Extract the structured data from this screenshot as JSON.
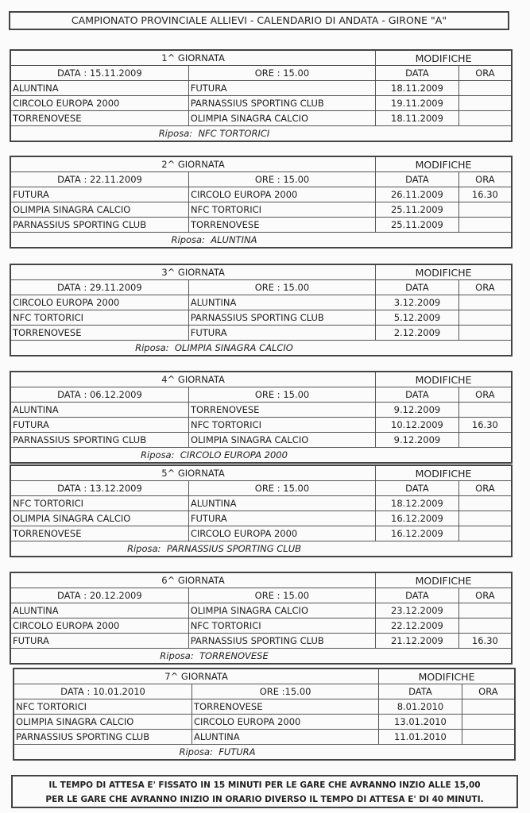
{
  "title": "CAMPIONATO PROVINCIALE ALLIEVI  - CALENDARIO DI ANDATA - GIRONE \"A\"",
  "labels": {
    "modifiche": "MODIFICHE",
    "data": "DATA",
    "ora": "ORA",
    "riposa": "Riposa:"
  },
  "giornate": [
    {
      "name": "1^ GIORNATA",
      "data": "DATA : 15.11.2009",
      "ore": "ORE : 15.00",
      "matches": [
        [
          "ALUNTINA",
          "FUTURA",
          "18.11.2009",
          ""
        ],
        [
          "CIRCOLO EUROPA 2000",
          "PARNASSIUS SPORTING CLUB",
          "19.11.2009",
          ""
        ],
        [
          "TORRENOVESE",
          "OLIMPIA SINAGRA CALCIO",
          "18.11.2009",
          ""
        ]
      ],
      "riposa": "NFC TORTORICI"
    },
    {
      "name": "2^ GIORNATA",
      "data": "DATA : 22.11.2009",
      "ore": "ORE : 15.00",
      "matches": [
        [
          "FUTURA",
          "CIRCOLO EUROPA 2000",
          "26.11.2009",
          "16.30"
        ],
        [
          "OLIMPIA SINAGRA CALCIO",
          "NFC TORTORICI",
          "25.11.2009",
          ""
        ],
        [
          "PARNASSIUS SPORTING CLUB",
          "TORRENOVESE",
          "25.11.2009",
          ""
        ]
      ],
      "riposa": "ALUNTINA"
    },
    {
      "name": "3^ GIORNATA",
      "data": "DATA : 29.11.2009",
      "ore": "ORE : 15.00",
      "matches": [
        [
          "CIRCOLO EUROPA 2000",
          "ALUNTINA",
          "3.12.2009",
          ""
        ],
        [
          "NFC TORTORICI",
          "PARNASSIUS SPORTING CLUB",
          "5.12.2009",
          ""
        ],
        [
          "TORRENOVESE",
          "FUTURA",
          "2.12.2009",
          ""
        ]
      ],
      "riposa": "OLIMPIA SINAGRA CALCIO"
    },
    {
      "name": "4^ GIORNATA",
      "data": "DATA : 06.12.2009",
      "ore": "ORE : 15.00",
      "matches": [
        [
          "ALUNTINA",
          "TORRENOVESE",
          "9.12.2009",
          ""
        ],
        [
          "FUTURA",
          "NFC TORTORICI",
          "10.12.2009",
          "16.30"
        ],
        [
          "PARNASSIUS SPORTING CLUB",
          "OLIMPIA SINAGRA CALCIO",
          "9.12.2009",
          ""
        ]
      ],
      "riposa": "CIRCOLO EUROPA 2000"
    },
    {
      "name": "5^ GIORNATA",
      "data": "DATA : 13.12.2009",
      "ore": "ORE : 15.00",
      "matches": [
        [
          "NFC TORTORICI",
          "ALUNTINA",
          "18.12.2009",
          ""
        ],
        [
          "OLIMPIA SINAGRA CALCIO",
          "FUTURA",
          "16.12.2009",
          ""
        ],
        [
          "TORRENOVESE",
          "CIRCOLO EUROPA 2000",
          "16.12.2009",
          ""
        ]
      ],
      "riposa": "PARNASSIUS SPORTING CLUB"
    },
    {
      "name": "6^ GIORNATA",
      "data": "DATA : 20.12.2009",
      "ore": "ORE : 15.00",
      "matches": [
        [
          "ALUNTINA",
          "OLIMPIA SINAGRA CALCIO",
          "23.12.2009",
          ""
        ],
        [
          "CIRCOLO EUROPA 2000",
          "NFC TORTORICI",
          "22.12.2009",
          ""
        ],
        [
          "FUTURA",
          "PARNASSIUS SPORTING CLUB",
          "21.12.2009",
          "16.30"
        ]
      ],
      "riposa": "TORRENOVESE"
    },
    {
      "name": "7^ GIORNATA",
      "data": "DATA : 10.01.2010",
      "ore": "ORE :15.00",
      "matches": [
        [
          "NFC TORTORICI",
          "TORRENOVESE",
          "8.01.2010",
          ""
        ],
        [
          "OLIMPIA SINAGRA CALCIO",
          "CIRCOLO EUROPA 2000",
          "13.01.2010",
          ""
        ],
        [
          "PARNASSIUS SPORTING CLUB",
          "ALUNTINA",
          "11.01.2010",
          ""
        ]
      ],
      "riposa": "FUTURA"
    }
  ],
  "note": [
    "IL TEMPO DI ATTESA E' FISSATO IN 15 MINUTI PER LE GARE CHE AVRANNO INZIO ALLE 15,00",
    "PER LE GARE CHE AVRANNO INIZIO IN ORARIO DIVERSO IL TEMPO DI ATTESA E' DI 40 MINUTI."
  ]
}
